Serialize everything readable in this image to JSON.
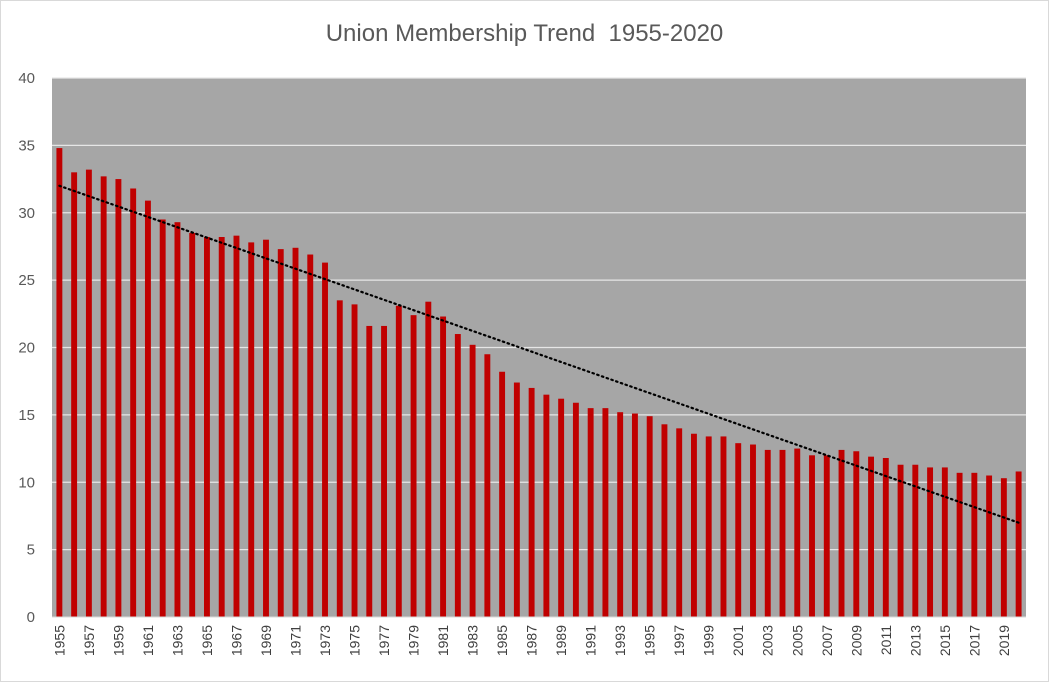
{
  "chart_data": {
    "type": "bar",
    "title": "Union Membership Trend  1955-2020",
    "xlabel": "",
    "ylabel": "",
    "ylim": [
      0,
      40
    ],
    "yticks": [
      0,
      5,
      10,
      15,
      20,
      25,
      30,
      35,
      40
    ],
    "categories": [
      "1955",
      "1956",
      "1957",
      "1958",
      "1959",
      "1960",
      "1961",
      "1962",
      "1963",
      "1964",
      "1965",
      "1966",
      "1967",
      "1968",
      "1969",
      "1970",
      "1971",
      "1972",
      "1973",
      "1974",
      "1975",
      "1976",
      "1977",
      "1978",
      "1979",
      "1980",
      "1981",
      "1982",
      "1983",
      "1984",
      "1985",
      "1986",
      "1987",
      "1988",
      "1989",
      "1990",
      "1991",
      "1992",
      "1993",
      "1994",
      "1995",
      "1996",
      "1997",
      "1998",
      "1999",
      "2000",
      "2001",
      "2002",
      "2003",
      "2004",
      "2005",
      "2006",
      "2007",
      "2008",
      "2009",
      "2010",
      "2011",
      "2012",
      "2013",
      "2014",
      "2015",
      "2016",
      "2017",
      "2018",
      "2019",
      "2020"
    ],
    "x_tick_labels": [
      "1955",
      "1957",
      "1959",
      "1961",
      "1963",
      "1965",
      "1967",
      "1969",
      "1971",
      "1973",
      "1975",
      "1977",
      "1979",
      "1981",
      "1983",
      "1985",
      "1987",
      "1989",
      "1991",
      "1993",
      "1995",
      "1997",
      "1999",
      "2001",
      "2003",
      "2005",
      "2007",
      "2009",
      "2011",
      "2013",
      "2015",
      "2017",
      "2019"
    ],
    "series": [
      {
        "values": [
          34.8,
          33.0,
          33.2,
          32.7,
          32.5,
          31.8,
          30.9,
          29.5,
          29.3,
          28.5,
          28.2,
          28.2,
          28.3,
          27.8,
          28.0,
          27.3,
          27.4,
          26.9,
          26.3,
          23.5,
          23.2,
          21.6,
          21.6,
          23.1,
          22.4,
          23.4,
          22.3,
          21.0,
          20.2,
          19.5,
          18.2,
          17.4,
          17.0,
          16.5,
          16.2,
          15.9,
          15.5,
          15.5,
          15.2,
          15.1,
          14.9,
          14.3,
          14.0,
          13.6,
          13.4,
          13.4,
          12.9,
          12.8,
          12.4,
          12.4,
          12.5,
          12.0,
          12.0,
          12.4,
          12.3,
          11.9,
          11.8,
          11.3,
          11.3,
          11.1,
          11.1,
          10.7,
          10.7,
          10.5,
          10.3,
          10.8
        ],
        "color": "#c00000"
      }
    ],
    "trendline": {
      "style": "dotted",
      "color": "#000000",
      "start": 32.0,
      "end": 7.0
    },
    "plot_background": "#a6a6a6",
    "grid": true,
    "gridline_color": "#e6e6e6",
    "legend": "none"
  }
}
